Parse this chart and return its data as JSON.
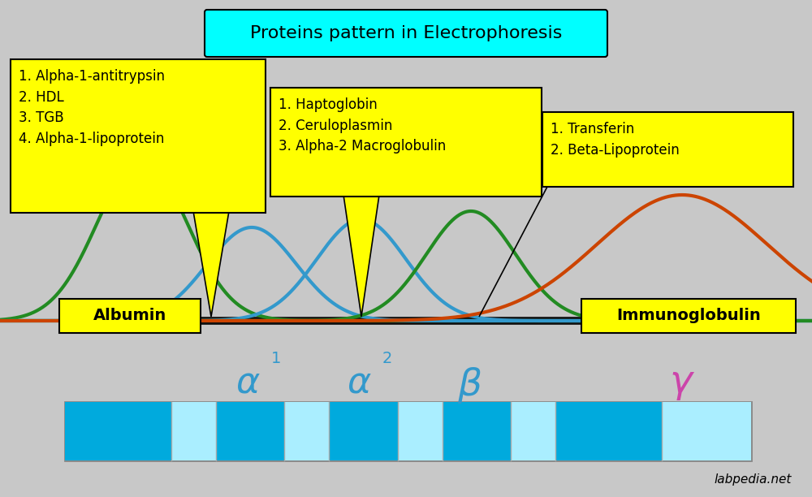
{
  "title": "Proteins pattern in Electrophoresis",
  "bg_color": "#C8C8C8",
  "title_box_color": "#00FFFF",
  "yellow": "#FFFF00",
  "green_line": "#00EE00",
  "black_line": "#111111",
  "albumin_peak_color": "#228B22",
  "alpha_peak_color": "#3399CC",
  "beta_peak_color": "#228B22",
  "gamma_peak_color": "#CC4400",
  "box1_text": "1. Alpha-1-antitrypsin\n2. HDL\n3. TGB\n4. Alpha-1-lipoprotein",
  "box2_text": "1. Haptoglobin\n2. Ceruloplasmin\n3. Alpha-2 Macroglobulin",
  "box3_text": "1. Transferin\n2. Beta-Lipoprotein",
  "albumin_label": "Albumin",
  "immuno_label": "Immunoglobulin",
  "watermark": "labpedia.net",
  "band_colors_dark": "#00AADD",
  "band_colors_light": "#88DDEE"
}
